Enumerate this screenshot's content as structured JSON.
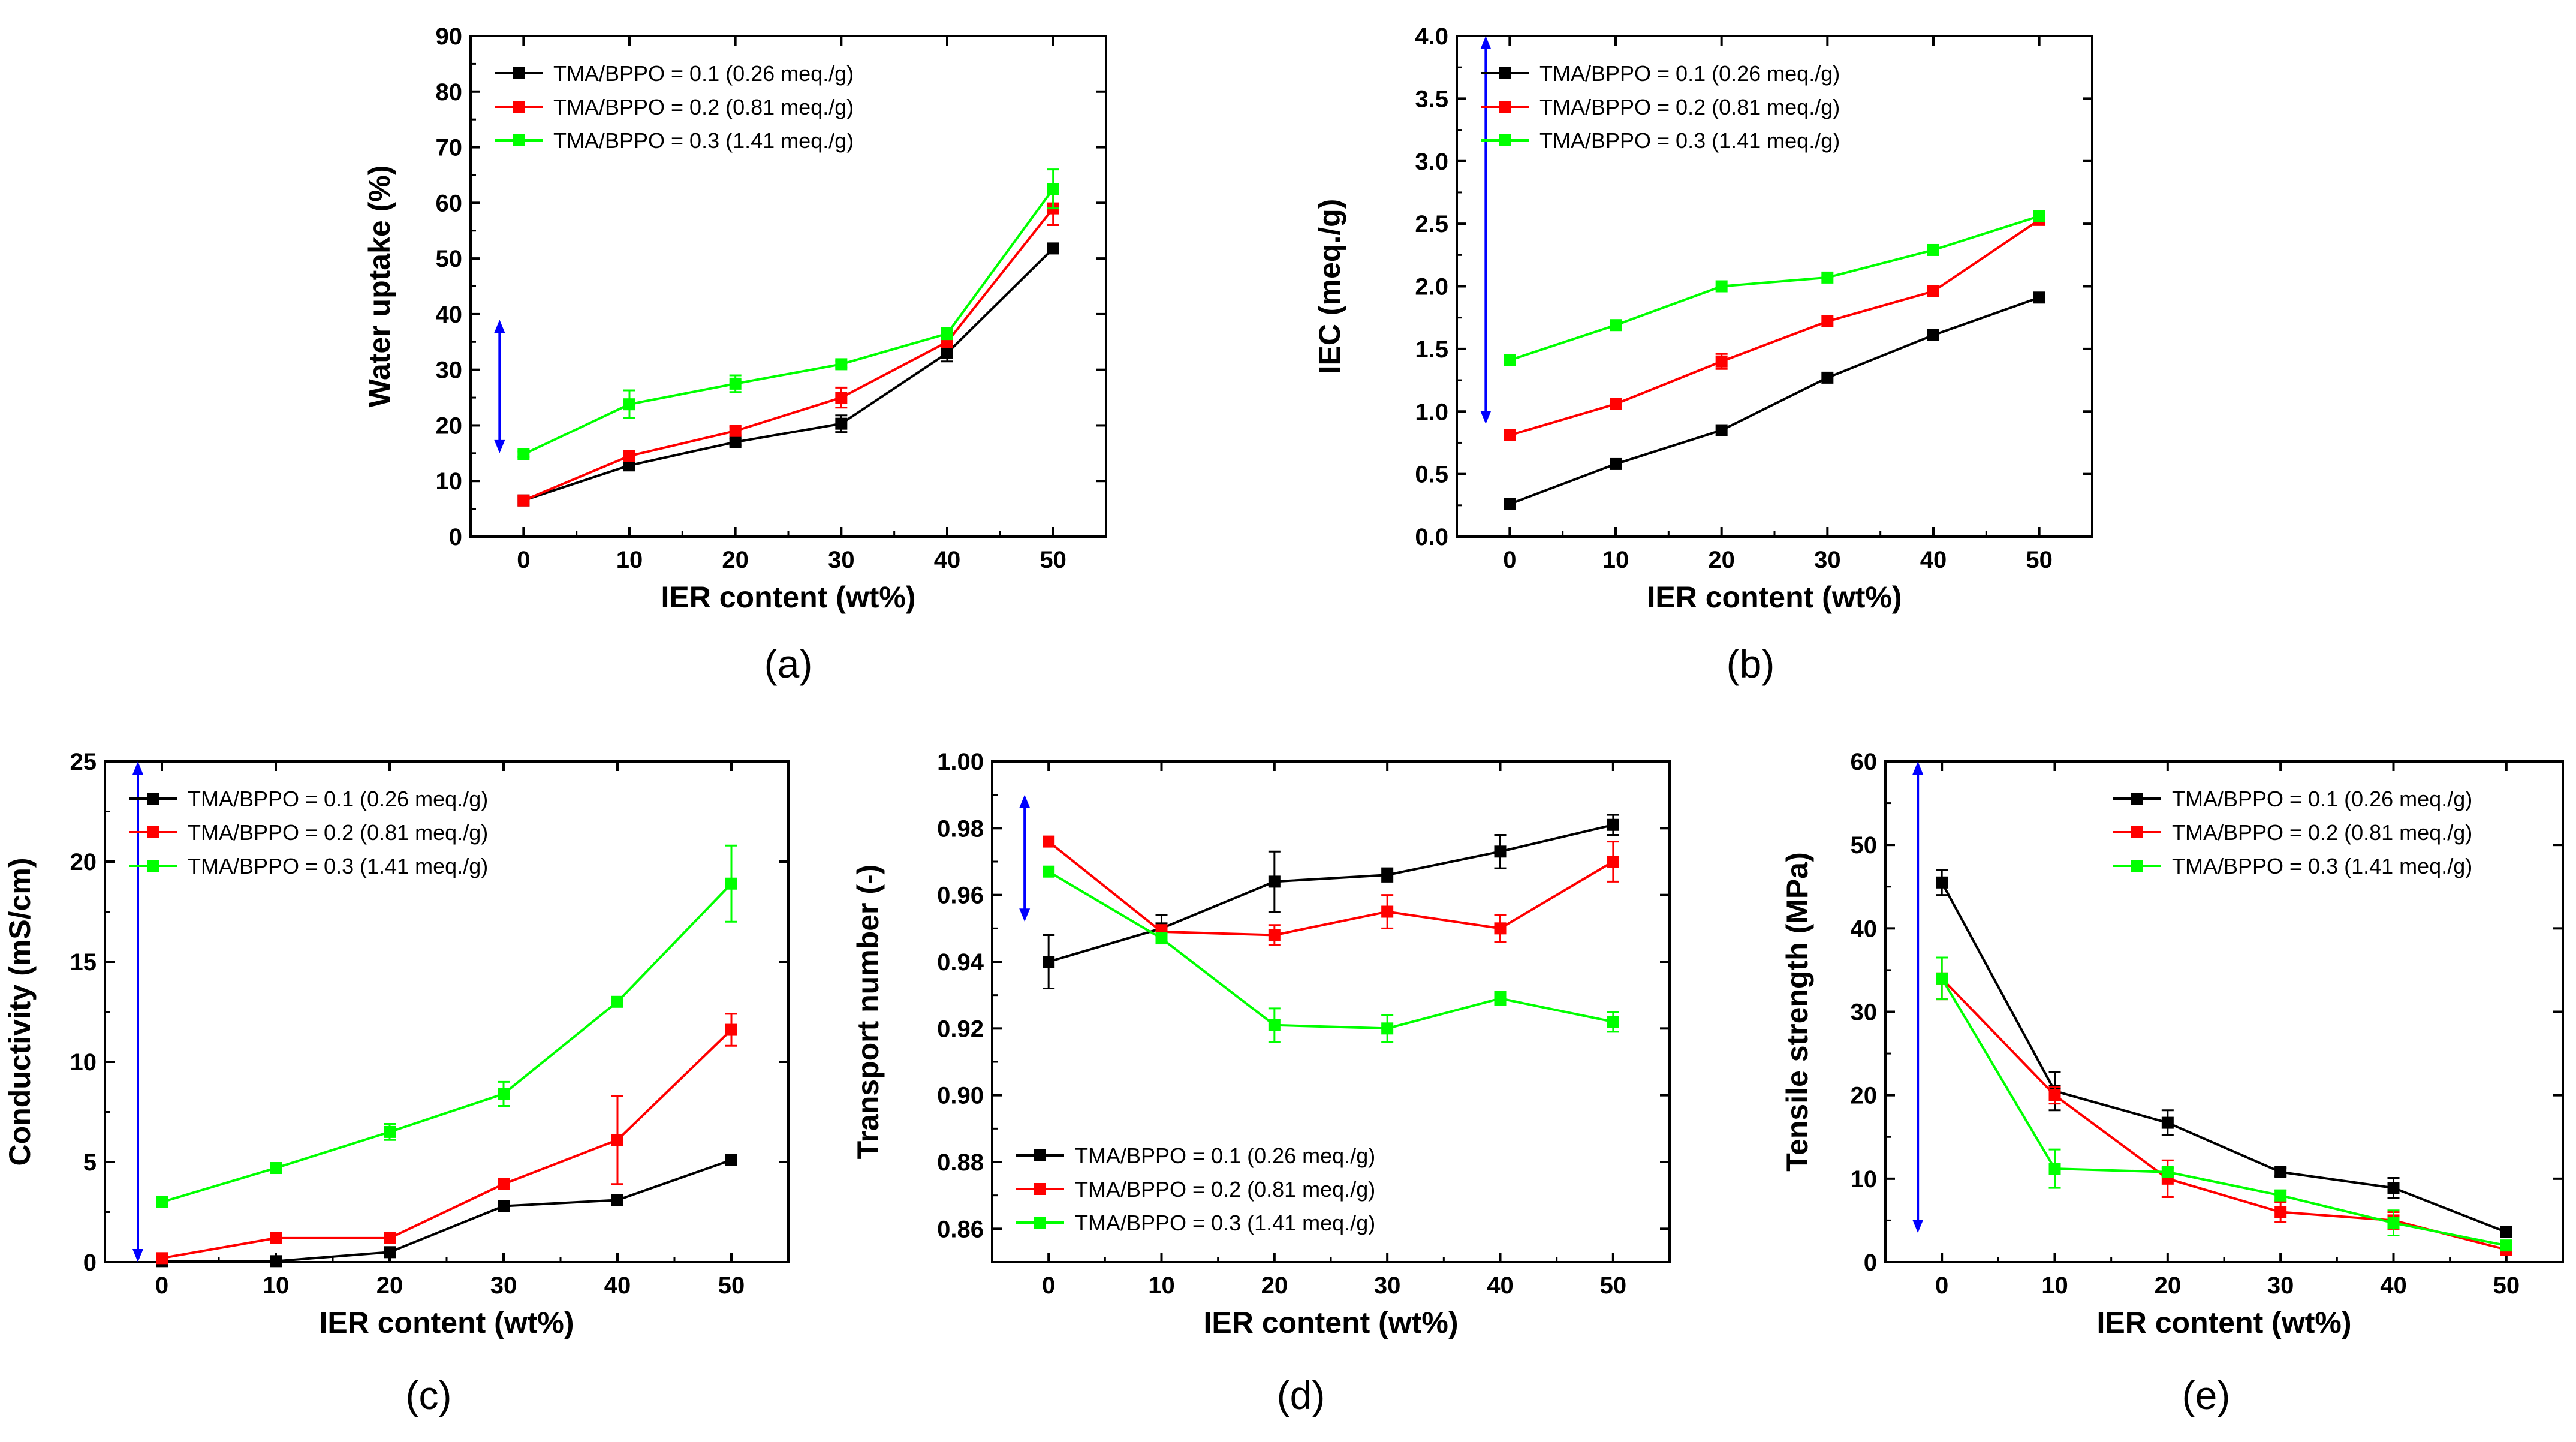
{
  "colors": {
    "s1": "#000000",
    "s2": "#ff0000",
    "s3": "#00ff00",
    "arrow": "#0000ff",
    "axis": "#000000"
  },
  "legend_labels": [
    "TMA/BPPO = 0.1 (0.26 meq./g)",
    "TMA/BPPO = 0.2 (0.81 meq./g)",
    "TMA/BPPO = 0.3 (1.41 meq./g)"
  ],
  "chart_data": [
    {
      "type": "line",
      "id": "a",
      "caption": "(a)",
      "xlabel": "IER content (wt%)",
      "ylabel": "Water uptake (%)",
      "x": [
        0,
        10,
        20,
        30,
        40,
        50
      ],
      "xlim": [
        -5,
        55
      ],
      "ylim": [
        0,
        90
      ],
      "yticks": [
        "0",
        "10",
        "20",
        "30",
        "40",
        "50",
        "60",
        "70",
        "80",
        "90"
      ],
      "legend_position": "top-left",
      "arrow": [
        15,
        39
      ],
      "series": [
        {
          "name": "TMA/BPPO = 0.1 (0.26 meq./g)",
          "values": [
            6.5,
            12.8,
            17.0,
            20.3,
            33.0,
            51.8
          ],
          "errors": [
            0,
            0.6,
            0.6,
            1.5,
            1.5,
            0.7
          ]
        },
        {
          "name": "TMA/BPPO = 0.2 (0.81 meq./g)",
          "values": [
            6.5,
            14.5,
            19.0,
            25.0,
            35.0,
            59.0
          ],
          "errors": [
            0,
            0.6,
            0.8,
            1.8,
            1.0,
            3.0
          ]
        },
        {
          "name": "TMA/BPPO = 0.3 (1.41 meq./g)",
          "values": [
            14.8,
            23.8,
            27.5,
            31.0,
            36.5,
            62.5
          ],
          "errors": [
            0.5,
            2.5,
            1.5,
            0.6,
            1.0,
            3.5
          ]
        }
      ]
    },
    {
      "type": "line",
      "id": "b",
      "caption": "(b)",
      "xlabel": "IER content (wt%)",
      "ylabel": "IEC (meq./g)",
      "x": [
        0,
        10,
        20,
        30,
        40,
        50
      ],
      "xlim": [
        -5,
        55
      ],
      "ylim": [
        0,
        4
      ],
      "yticks": [
        "0.0",
        "0.5",
        "1.0",
        "1.5",
        "2.0",
        "2.5",
        "3.0",
        "3.5",
        "4.0"
      ],
      "legend_position": "top-left",
      "arrow": [
        4.0,
        0.9
      ],
      "series": [
        {
          "name": "TMA/BPPO = 0.1 (0.26 meq./g)",
          "values": [
            0.26,
            0.58,
            0.85,
            1.27,
            1.61,
            1.91
          ],
          "errors": [
            0,
            0,
            0,
            0,
            0,
            0
          ]
        },
        {
          "name": "TMA/BPPO = 0.2 (0.81 meq./g)",
          "values": [
            0.81,
            1.06,
            1.4,
            1.72,
            1.96,
            2.53
          ],
          "errors": [
            0,
            0,
            0.06,
            0,
            0,
            0
          ]
        },
        {
          "name": "TMA/BPPO = 0.3 (1.41 meq./g)",
          "values": [
            1.41,
            1.69,
            2.0,
            2.07,
            2.29,
            2.56
          ],
          "errors": [
            0,
            0,
            0,
            0,
            0,
            0
          ]
        }
      ]
    },
    {
      "type": "line",
      "id": "c",
      "caption": "(c)",
      "xlabel": "IER content (wt%)",
      "ylabel": "Conductivity (mS/cm)",
      "x": [
        0,
        10,
        20,
        30,
        40,
        50
      ],
      "xlim": [
        -5,
        55
      ],
      "ylim": [
        0,
        25
      ],
      "yticks": [
        "0",
        "5",
        "10",
        "15",
        "20",
        "25"
      ],
      "legend_position": "top-left",
      "arrow": [
        25,
        0
      ],
      "series": [
        {
          "name": "TMA/BPPO = 0.1 (0.26 meq./g)",
          "values": [
            0.05,
            0.05,
            0.5,
            2.8,
            3.1,
            5.1
          ],
          "errors": [
            0,
            0,
            0,
            0,
            0,
            0
          ]
        },
        {
          "name": "TMA/BPPO = 0.2 (0.81 meq./g)",
          "values": [
            0.2,
            1.2,
            1.2,
            3.9,
            6.1,
            11.6
          ],
          "errors": [
            0,
            0,
            0,
            0,
            2.2,
            0.8
          ]
        },
        {
          "name": "TMA/BPPO = 0.3 (1.41 meq./g)",
          "values": [
            3.0,
            4.7,
            6.5,
            8.4,
            13.0,
            18.9
          ],
          "errors": [
            0,
            0,
            0.4,
            0.6,
            0,
            1.9
          ]
        }
      ]
    },
    {
      "type": "line",
      "id": "d",
      "caption": "(d)",
      "xlabel": "IER content (wt%)",
      "ylabel": "Transport number (-)",
      "x": [
        0,
        10,
        20,
        30,
        40,
        50
      ],
      "xlim": [
        -5,
        55
      ],
      "ylim": [
        0.85,
        1.0
      ],
      "yticks": [
        "0.86",
        "0.88",
        "0.90",
        "0.92",
        "0.94",
        "0.96",
        "0.98",
        "1.00"
      ],
      "legend_position": "bottom-left",
      "arrow": [
        0.99,
        0.952
      ],
      "series": [
        {
          "name": "TMA/BPPO = 0.1 (0.26 meq./g)",
          "values": [
            0.94,
            0.95,
            0.964,
            0.966,
            0.973,
            0.981
          ],
          "errors": [
            0.008,
            0.004,
            0.009,
            0.002,
            0.005,
            0.003
          ]
        },
        {
          "name": "TMA/BPPO = 0.2 (0.81 meq./g)",
          "values": [
            0.976,
            0.949,
            0.948,
            0.955,
            0.95,
            0.97
          ],
          "errors": [
            0,
            0.002,
            0.003,
            0.005,
            0.004,
            0.006
          ]
        },
        {
          "name": "TMA/BPPO = 0.3 (1.41 meq./g)",
          "values": [
            0.967,
            0.947,
            0.921,
            0.92,
            0.929,
            0.922
          ],
          "errors": [
            0,
            0,
            0.005,
            0.004,
            0.002,
            0.003
          ]
        }
      ]
    },
    {
      "type": "line",
      "id": "e",
      "caption": "(e)",
      "xlabel": "IER content (wt%)",
      "ylabel": "Tensile strength (MPa)",
      "x": [
        0,
        10,
        20,
        30,
        40,
        50
      ],
      "xlim": [
        -5,
        55
      ],
      "ylim": [
        0,
        60
      ],
      "yticks": [
        "0",
        "10",
        "20",
        "30",
        "40",
        "50",
        "60"
      ],
      "legend_position": "top-right",
      "arrow": [
        60,
        3.5
      ],
      "series": [
        {
          "name": "TMA/BPPO = 0.1 (0.26 meq./g)",
          "values": [
            45.5,
            20.5,
            16.7,
            10.8,
            8.9,
            3.6
          ],
          "errors": [
            1.5,
            2.3,
            1.5,
            0.5,
            1.2,
            0.3
          ]
        },
        {
          "name": "TMA/BPPO = 0.2 (0.81 meq./g)",
          "values": [
            34.0,
            20.0,
            10.0,
            6.0,
            5.0,
            1.5
          ],
          "errors": [
            2.5,
            1.0,
            2.2,
            1.2,
            1.0,
            0.3
          ]
        },
        {
          "name": "TMA/BPPO = 0.3 (1.41 meq./g)",
          "values": [
            34.0,
            11.2,
            10.8,
            8.0,
            4.7,
            2.0
          ],
          "errors": [
            2.5,
            2.3,
            0.5,
            0.6,
            1.5,
            0.3
          ]
        }
      ]
    }
  ]
}
